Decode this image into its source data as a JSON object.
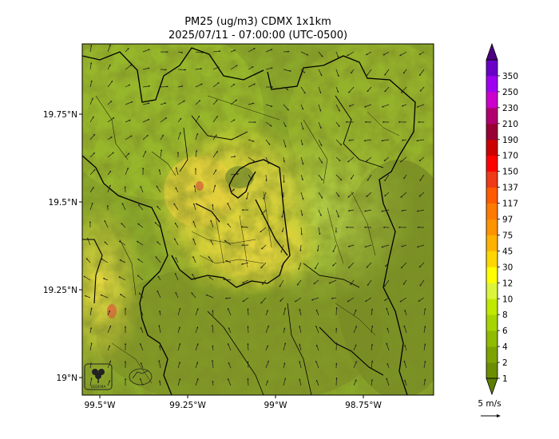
{
  "title": {
    "line1": "PM25 (ug/m3) CDMX 1x1km",
    "line2": "2025/07/11 - 07:00:00 (UTC-0500)"
  },
  "map": {
    "lon_range": [
      -99.55,
      -98.55
    ],
    "lat_range": [
      18.95,
      19.95
    ],
    "x_ticks": [
      {
        "value": -99.5,
        "label": "99.5°W"
      },
      {
        "value": -99.25,
        "label": "99.25°W"
      },
      {
        "value": -99.0,
        "label": "99°W"
      },
      {
        "value": -98.75,
        "label": "98.75°W"
      }
    ],
    "y_ticks": [
      {
        "value": 19.75,
        "label": "19.75°N"
      },
      {
        "value": 19.5,
        "label": "19.5°N"
      },
      {
        "value": 19.25,
        "label": "19.25°N"
      },
      {
        "value": 19.0,
        "label": "19°N"
      }
    ],
    "logo_text": "SEDEMA"
  },
  "colorbar": {
    "levels": [
      "1",
      "2",
      "4",
      "6",
      "8",
      "10",
      "12",
      "30",
      "45",
      "75",
      "97",
      "117",
      "137",
      "150",
      "170",
      "190",
      "210",
      "230",
      "250",
      "350"
    ],
    "colors": [
      "#6b8e00",
      "#7da300",
      "#8fbb00",
      "#a6d400",
      "#c0e800",
      "#dcf53c",
      "#ffff00",
      "#ffd700",
      "#ffb300",
      "#ff9400",
      "#ff7a00",
      "#ff5a00",
      "#ee3a18",
      "#ff0000",
      "#cc0000",
      "#990033",
      "#b0006e",
      "#cc00cc",
      "#a000f0",
      "#6a00c8"
    ],
    "extend_colors": {
      "min": "#5c7d00",
      "max": "#4b0082"
    }
  },
  "wind_key": {
    "label": "5 m/s"
  }
}
